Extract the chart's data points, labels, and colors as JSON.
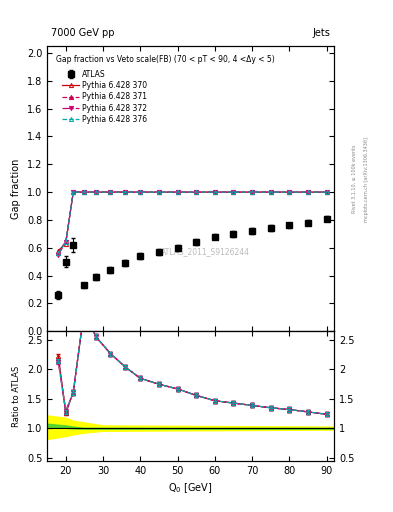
{
  "title_top": "7000 GeV pp",
  "title_right": "Jets",
  "plot_title": "Gap fraction vs Veto scale(FB) (70 < pT < 90, 4 <Δy < 5)",
  "watermark": "ATLAS_2011_S9126244",
  "xlabel": "Q$_0$ [GeV]",
  "ylabel_main": "Gap fraction",
  "ylabel_ratio": "Ratio to ATLAS",
  "right_label": "Rivet 3.1.10, ≥ 100k events",
  "right_label2": "mcplots.cern.ch [arXiv:1306.3436]",
  "xlim": [
    15,
    92
  ],
  "ylim_main": [
    0.0,
    2.05
  ],
  "ylim_ratio": [
    0.45,
    2.65
  ],
  "yticks_main": [
    0.0,
    0.2,
    0.4,
    0.6,
    0.8,
    1.0,
    1.2,
    1.4,
    1.6,
    1.8,
    2.0
  ],
  "yticks_ratio": [
    0.5,
    1.0,
    1.5,
    2.0,
    2.5
  ],
  "atlas_x": [
    18,
    20,
    22,
    25,
    28,
    32,
    36,
    40,
    45,
    50,
    55,
    60,
    65,
    70,
    75,
    80,
    85,
    90
  ],
  "atlas_y": [
    0.26,
    0.5,
    0.62,
    0.33,
    0.39,
    0.44,
    0.49,
    0.54,
    0.57,
    0.6,
    0.64,
    0.68,
    0.7,
    0.72,
    0.74,
    0.76,
    0.78,
    0.81
  ],
  "atlas_yerr": [
    0.03,
    0.04,
    0.05,
    0.02,
    0.02,
    0.02,
    0.02,
    0.02,
    0.02,
    0.02,
    0.02,
    0.02,
    0.02,
    0.02,
    0.02,
    0.02,
    0.02,
    0.02
  ],
  "py370_y": [
    0.58,
    0.63,
    1.0,
    1.0,
    1.0,
    1.0,
    1.0,
    1.0,
    1.0,
    1.0,
    1.0,
    1.0,
    1.0,
    1.0,
    1.0,
    1.0,
    1.0,
    1.0
  ],
  "py371_y": [
    0.56,
    0.65,
    1.0,
    1.0,
    1.0,
    1.0,
    1.0,
    1.0,
    1.0,
    1.0,
    1.0,
    1.0,
    1.0,
    1.0,
    1.0,
    1.0,
    1.0,
    1.0
  ],
  "py372_y": [
    0.55,
    0.64,
    1.0,
    1.0,
    1.0,
    1.0,
    1.0,
    1.0,
    1.0,
    1.0,
    1.0,
    1.0,
    1.0,
    1.0,
    1.0,
    1.0,
    1.0,
    1.0
  ],
  "py376_y": [
    0.56,
    0.64,
    1.0,
    1.0,
    1.0,
    1.0,
    1.0,
    1.0,
    1.0,
    1.0,
    1.0,
    1.0,
    1.0,
    1.0,
    1.0,
    1.0,
    1.0,
    1.0
  ],
  "ratio370_y": [
    2.23,
    1.26,
    1.61,
    3.03,
    2.56,
    2.27,
    2.04,
    1.85,
    1.75,
    1.67,
    1.56,
    1.47,
    1.43,
    1.39,
    1.35,
    1.32,
    1.28,
    1.24
  ],
  "ratio371_y": [
    2.15,
    1.3,
    1.61,
    3.03,
    2.56,
    2.27,
    2.04,
    1.85,
    1.75,
    1.67,
    1.56,
    1.47,
    1.43,
    1.39,
    1.35,
    1.32,
    1.28,
    1.24
  ],
  "ratio372_y": [
    2.12,
    1.28,
    1.61,
    3.03,
    2.56,
    2.27,
    2.04,
    1.85,
    1.75,
    1.67,
    1.56,
    1.47,
    1.43,
    1.39,
    1.35,
    1.32,
    1.28,
    1.24
  ],
  "ratio376_y": [
    2.15,
    1.28,
    1.61,
    3.03,
    2.56,
    2.27,
    2.04,
    1.85,
    1.75,
    1.67,
    1.56,
    1.47,
    1.43,
    1.39,
    1.35,
    1.32,
    1.28,
    1.24
  ],
  "green_band_x": [
    15,
    20,
    22,
    25,
    30,
    92
  ],
  "green_band_y_low": [
    1.03,
    1.01,
    1.0,
    0.995,
    0.995,
    0.995
  ],
  "green_band_y_high": [
    1.08,
    1.05,
    1.03,
    1.01,
    1.01,
    1.01
  ],
  "yellow_band_x": [
    15,
    20,
    22,
    25,
    30,
    92
  ],
  "yellow_band_y_low": [
    0.82,
    0.87,
    0.9,
    0.93,
    0.96,
    0.98
  ],
  "yellow_band_y_high": [
    1.22,
    1.18,
    1.13,
    1.1,
    1.05,
    1.03
  ],
  "color_atlas": "#000000",
  "color_py370": "#cc0000",
  "color_py371": "#cc0055",
  "color_py372": "#cc0077",
  "color_py376": "#00aaaa",
  "color_green": "#33cc33",
  "color_yellow": "#ffff00",
  "bg_color": "#ffffff"
}
